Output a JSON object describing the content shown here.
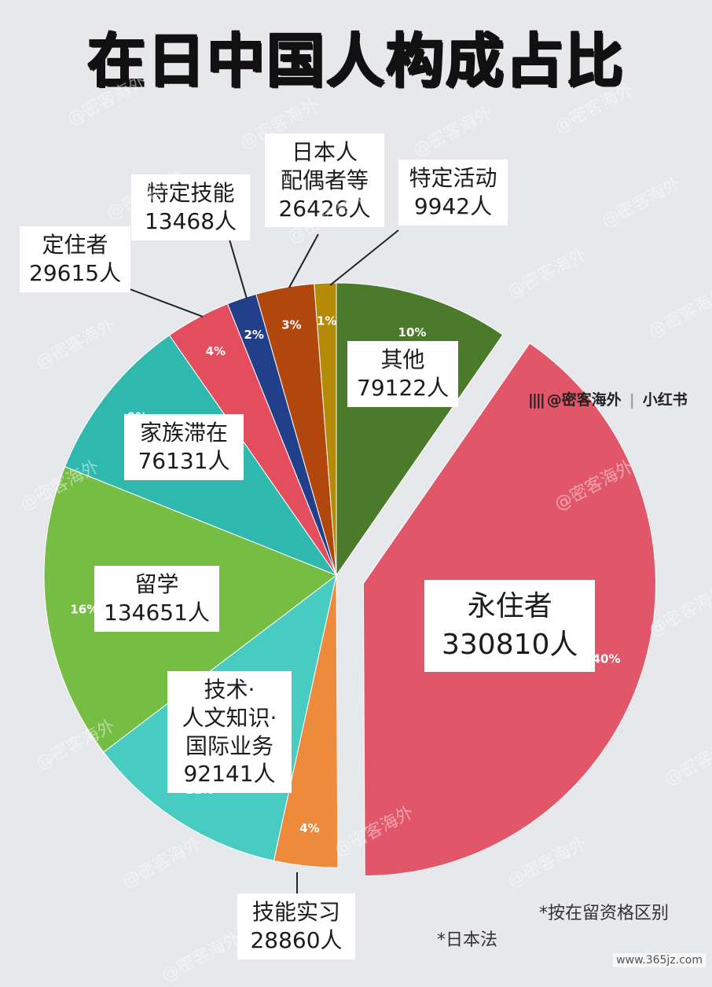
{
  "title": "在日中国人构成占比",
  "brand": {
    "handle": "@密客海外",
    "platform": "小红书"
  },
  "notes": [
    "*按在留资格区别",
    "*日本法"
  ],
  "site_watermark": "www.365jz.com",
  "watermark": "@密客海外",
  "chart_data": {
    "type": "pie",
    "title": "在日中国人构成占比",
    "start": "12 o'clock, clockwise",
    "unit": "人",
    "slices": [
      {
        "name": "其他",
        "label_lines": [
          "其他",
          "79122人"
        ],
        "value": 79122,
        "percent_label": "10%",
        "color": "#4a7a2a",
        "exploded": false
      },
      {
        "name": "永住者",
        "label_lines": [
          "永住者",
          "330810人"
        ],
        "value": 330810,
        "percent_label": "40%",
        "color": "#e2566a",
        "exploded": true
      },
      {
        "name": "技能实习",
        "label_lines": [
          "技能实习",
          "28860人"
        ],
        "value": 28860,
        "percent_label": "4%",
        "color": "#ee8a3c",
        "exploded": false
      },
      {
        "name": "技术·人文知识·国际业务",
        "label_lines": [
          "技术·",
          "人文知识·",
          "国际业务",
          "92141人"
        ],
        "value": 92141,
        "percent_label": "11%",
        "color": "#48cbc0",
        "exploded": false
      },
      {
        "name": "留学",
        "label_lines": [
          "留学",
          "134651人"
        ],
        "value": 134651,
        "percent_label": "16%",
        "color": "#76bd43",
        "exploded": false
      },
      {
        "name": "家族滞在",
        "label_lines": [
          "家族滞在",
          "76131人"
        ],
        "value": 76131,
        "percent_label": "9%",
        "color": "#2fb9ae",
        "exploded": false
      },
      {
        "name": "定住者",
        "label_lines": [
          "定住者",
          "29615人"
        ],
        "value": 29615,
        "percent_label": "4%",
        "color": "#e24e5e",
        "exploded": false
      },
      {
        "name": "特定技能",
        "label_lines": [
          "特定技能",
          "13468人"
        ],
        "value": 13468,
        "percent_label": "2%",
        "color": "#22408a",
        "exploded": false
      },
      {
        "name": "日本人配偶者等",
        "label_lines": [
          "日本人",
          "配偶者等",
          "26426人"
        ],
        "value": 26426,
        "percent_label": "3%",
        "color": "#b2470e",
        "exploded": false
      },
      {
        "name": "特定活动",
        "label_lines": [
          "特定活动",
          "9942人"
        ],
        "value": 9942,
        "percent_label": "1%",
        "color": "#b58a06",
        "exploded": false
      }
    ]
  }
}
